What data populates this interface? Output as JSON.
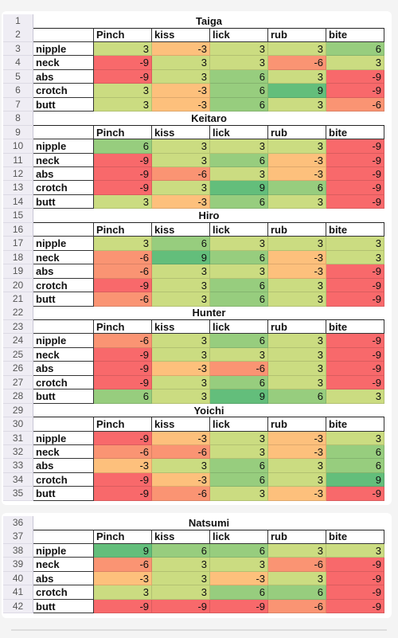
{
  "columns": [
    "Pinch",
    "kiss",
    "lick",
    "rub",
    "bite"
  ],
  "blocks": [
    {
      "title_row": 1,
      "title": "Taiga",
      "header_row": 2,
      "rows": [
        {
          "row": 3,
          "label": "nipple",
          "values": [
            3,
            -3,
            3,
            3,
            6
          ]
        },
        {
          "row": 4,
          "label": "neck",
          "values": [
            -9,
            3,
            3,
            -6,
            3
          ]
        },
        {
          "row": 5,
          "label": "abs",
          "values": [
            -9,
            3,
            6,
            3,
            -9
          ]
        },
        {
          "row": 6,
          "label": "crotch",
          "values": [
            3,
            -3,
            6,
            9,
            -9
          ]
        },
        {
          "row": 7,
          "label": "butt",
          "values": [
            3,
            -3,
            6,
            3,
            -6
          ]
        }
      ]
    },
    {
      "title_row": 8,
      "title": "Keitaro",
      "header_row": 9,
      "rows": [
        {
          "row": 10,
          "label": "nipple",
          "values": [
            6,
            3,
            3,
            3,
            -9
          ]
        },
        {
          "row": 11,
          "label": "neck",
          "values": [
            -9,
            3,
            6,
            -3,
            -9
          ]
        },
        {
          "row": 12,
          "label": "abs",
          "values": [
            -9,
            -6,
            3,
            -3,
            -9
          ]
        },
        {
          "row": 13,
          "label": "crotch",
          "values": [
            -9,
            3,
            9,
            6,
            -9
          ]
        },
        {
          "row": 14,
          "label": "butt",
          "values": [
            3,
            -3,
            6,
            3,
            -9
          ]
        }
      ]
    },
    {
      "title_row": 15,
      "title": "Hiro",
      "header_row": 16,
      "rows": [
        {
          "row": 17,
          "label": "nipple",
          "values": [
            3,
            6,
            3,
            3,
            3
          ]
        },
        {
          "row": 18,
          "label": "neck",
          "values": [
            -6,
            9,
            6,
            -3,
            3
          ]
        },
        {
          "row": 19,
          "label": "abs",
          "values": [
            -6,
            3,
            3,
            -3,
            -9
          ]
        },
        {
          "row": 20,
          "label": "crotch",
          "values": [
            -9,
            3,
            6,
            3,
            -9
          ]
        },
        {
          "row": 21,
          "label": "butt",
          "values": [
            -6,
            3,
            6,
            3,
            -9
          ]
        }
      ]
    },
    {
      "title_row": 22,
      "title": "Hunter",
      "header_row": 23,
      "rows": [
        {
          "row": 24,
          "label": "nipple",
          "values": [
            -6,
            3,
            6,
            3,
            -9
          ]
        },
        {
          "row": 25,
          "label": "neck",
          "values": [
            -9,
            3,
            3,
            3,
            -9
          ]
        },
        {
          "row": 26,
          "label": "abs",
          "values": [
            -9,
            -3,
            -6,
            3,
            -9
          ]
        },
        {
          "row": 27,
          "label": "crotch",
          "values": [
            -9,
            3,
            6,
            3,
            -9
          ]
        },
        {
          "row": 28,
          "label": "butt",
          "values": [
            6,
            3,
            9,
            6,
            3
          ]
        }
      ]
    },
    {
      "title_row": 29,
      "title": "Yoichi",
      "header_row": 30,
      "rows": [
        {
          "row": 31,
          "label": "nipple",
          "values": [
            -9,
            -3,
            3,
            -3,
            3
          ]
        },
        {
          "row": 32,
          "label": "neck",
          "values": [
            -6,
            -6,
            3,
            -3,
            6
          ]
        },
        {
          "row": 33,
          "label": "abs",
          "values": [
            -3,
            3,
            6,
            3,
            6
          ]
        },
        {
          "row": 34,
          "label": "crotch",
          "values": [
            -9,
            -3,
            6,
            3,
            9
          ]
        },
        {
          "row": 35,
          "label": "butt",
          "values": [
            -9,
            -6,
            3,
            -3,
            -9
          ]
        }
      ]
    },
    {
      "title_row": 36,
      "title": "Natsumi",
      "header_row": 37,
      "rows": [
        {
          "row": 38,
          "label": "nipple",
          "values": [
            9,
            6,
            6,
            3,
            3
          ]
        },
        {
          "row": 39,
          "label": "neck",
          "values": [
            -6,
            3,
            3,
            -6,
            -9
          ]
        },
        {
          "row": 40,
          "label": "abs",
          "values": [
            -3,
            3,
            -3,
            3,
            -9
          ]
        },
        {
          "row": 41,
          "label": "crotch",
          "values": [
            3,
            3,
            6,
            6,
            -9
          ]
        },
        {
          "row": 42,
          "label": "butt",
          "values": [
            -9,
            -9,
            -9,
            -6,
            -9
          ]
        }
      ]
    }
  ]
}
